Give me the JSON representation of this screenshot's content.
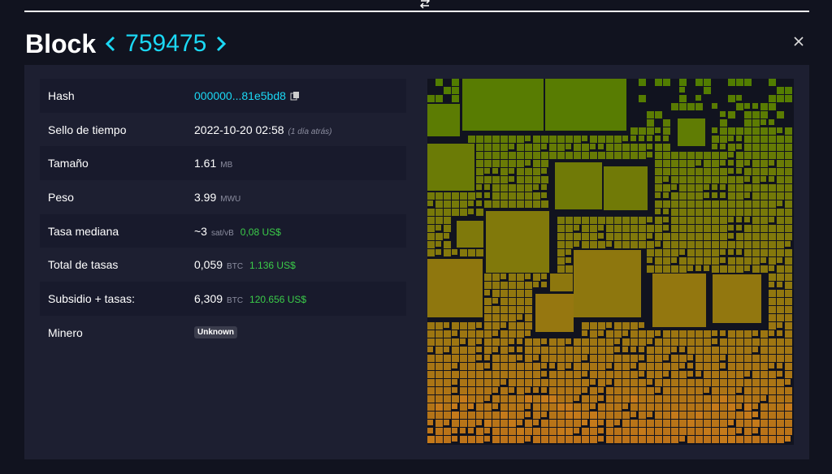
{
  "header": {
    "title": "Block",
    "block_height": "759475"
  },
  "table": {
    "rows": [
      {
        "label": "Hash",
        "value": "000000...81e5bd8"
      },
      {
        "label": "Sello de tiempo",
        "value": "2022-10-20 02:58",
        "note": "(1 día atrás)"
      },
      {
        "label": "Tamaño",
        "value": "1.61",
        "unit": "MB"
      },
      {
        "label": "Peso",
        "value": "3.99",
        "unit": "MWU"
      },
      {
        "label": "Tasa mediana",
        "value": "~3",
        "unit": "sat/vB",
        "fiat": "0,08 US$"
      },
      {
        "label": "Total de tasas",
        "value": "0,059",
        "unit": "BTC",
        "fiat": "1.136 US$"
      },
      {
        "label": "Subsidio + tasas:",
        "value": "6,309",
        "unit": "BTC",
        "fiat": "120.656 US$"
      },
      {
        "label": "Minero",
        "badge": "Unknown"
      }
    ]
  }
}
